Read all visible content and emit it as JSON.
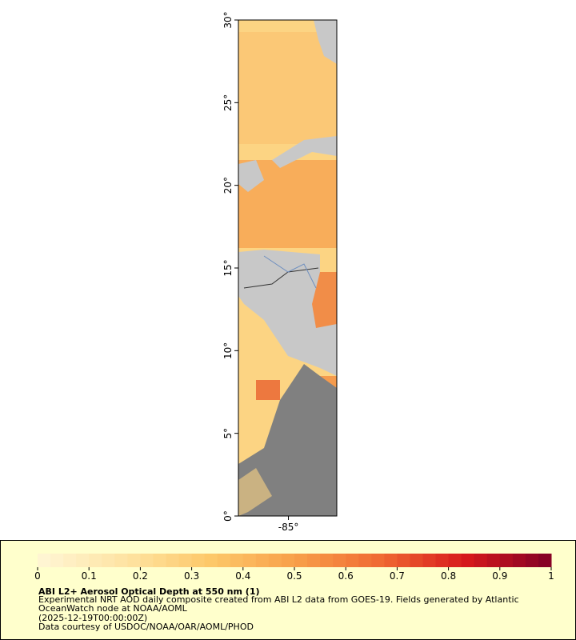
{
  "map": {
    "ylim": [
      0,
      30
    ],
    "yticks": [
      {
        "value": 0,
        "label": "0°"
      },
      {
        "value": 5,
        "label": "5°"
      },
      {
        "value": 10,
        "label": "10°"
      },
      {
        "value": 15,
        "label": "15°"
      },
      {
        "value": 20,
        "label": "20°"
      },
      {
        "value": 25,
        "label": "25°"
      },
      {
        "value": 30,
        "label": "30°"
      }
    ],
    "xlim": [
      -88,
      -82.1
    ],
    "xticks": [
      {
        "value": -85,
        "label": "-85°"
      }
    ]
  },
  "colorbar": {
    "lim": [
      0,
      1
    ],
    "ticks": [
      0,
      0.1,
      0.2,
      0.3,
      0.4,
      0.5,
      0.6,
      0.7,
      0.8,
      0.9,
      1
    ],
    "colors": [
      "#fff6d6",
      "#fee4a4",
      "#fdc96a",
      "#f8a04a",
      "#f06a33",
      "#d7191c",
      "#800026"
    ]
  },
  "legend": {
    "title": "ABI L2+ Aerosol Optical Depth at 550 nm (1)",
    "lines": [
      "Experimental NRT AOD daily composite created from ABI L2 data from GOES-19. Fields generated by Atlantic",
      "OceanWatch node at NOAA/AOML",
      "(2025-12-19T00:00:00Z)",
      "Data courtesy of USDOC/NOAA/OAR/AOML/PHOD"
    ]
  }
}
